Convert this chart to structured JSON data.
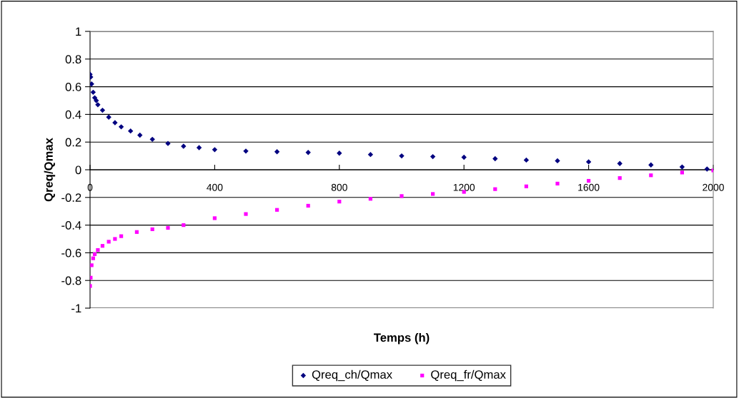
{
  "chart_data": {
    "type": "scatter",
    "xlabel": "Temps (h)",
    "ylabel": "Qreq/Qmax",
    "xlim": [
      0,
      2000
    ],
    "xticks": [
      0,
      400,
      800,
      1200,
      1600,
      2000
    ],
    "ylim": [
      -1,
      1
    ],
    "yticks": [
      -1,
      -0.8,
      -0.6,
      -0.4,
      -0.2,
      0,
      0.2,
      0.4,
      0.6,
      0.8,
      1
    ],
    "grid": "y",
    "legend": "bottom",
    "series": [
      {
        "name": "Qreq_ch/Qmax",
        "color": "#000080",
        "marker": "diamond",
        "x": [
          0,
          2,
          5,
          10,
          15,
          20,
          25,
          40,
          60,
          80,
          100,
          130,
          160,
          200,
          250,
          300,
          350,
          400,
          500,
          600,
          700,
          800,
          900,
          1000,
          1100,
          1200,
          1300,
          1400,
          1500,
          1600,
          1700,
          1800,
          1900,
          1980
        ],
        "values": [
          0.69,
          0.67,
          0.62,
          0.56,
          0.52,
          0.5,
          0.47,
          0.43,
          0.38,
          0.34,
          0.31,
          0.28,
          0.25,
          0.22,
          0.19,
          0.17,
          0.16,
          0.145,
          0.135,
          0.13,
          0.125,
          0.12,
          0.11,
          0.1,
          0.095,
          0.09,
          0.08,
          0.07,
          0.065,
          0.057,
          0.045,
          0.035,
          0.02,
          0.005
        ]
      },
      {
        "name": "Qreq_fr/Qmax",
        "color": "#ff00ff",
        "marker": "square",
        "x": [
          0,
          2,
          5,
          10,
          15,
          25,
          40,
          60,
          80,
          100,
          150,
          200,
          250,
          300,
          400,
          500,
          600,
          700,
          800,
          900,
          1000,
          1100,
          1200,
          1300,
          1400,
          1500,
          1600,
          1700,
          1800,
          1900,
          2000
        ],
        "values": [
          -0.84,
          -0.78,
          -0.69,
          -0.64,
          -0.61,
          -0.58,
          -0.55,
          -0.52,
          -0.5,
          -0.48,
          -0.45,
          -0.43,
          -0.42,
          -0.4,
          -0.35,
          -0.32,
          -0.29,
          -0.26,
          -0.23,
          -0.21,
          -0.19,
          -0.175,
          -0.16,
          -0.14,
          -0.12,
          -0.1,
          -0.08,
          -0.06,
          -0.04,
          -0.02,
          -0.005
        ]
      }
    ]
  }
}
